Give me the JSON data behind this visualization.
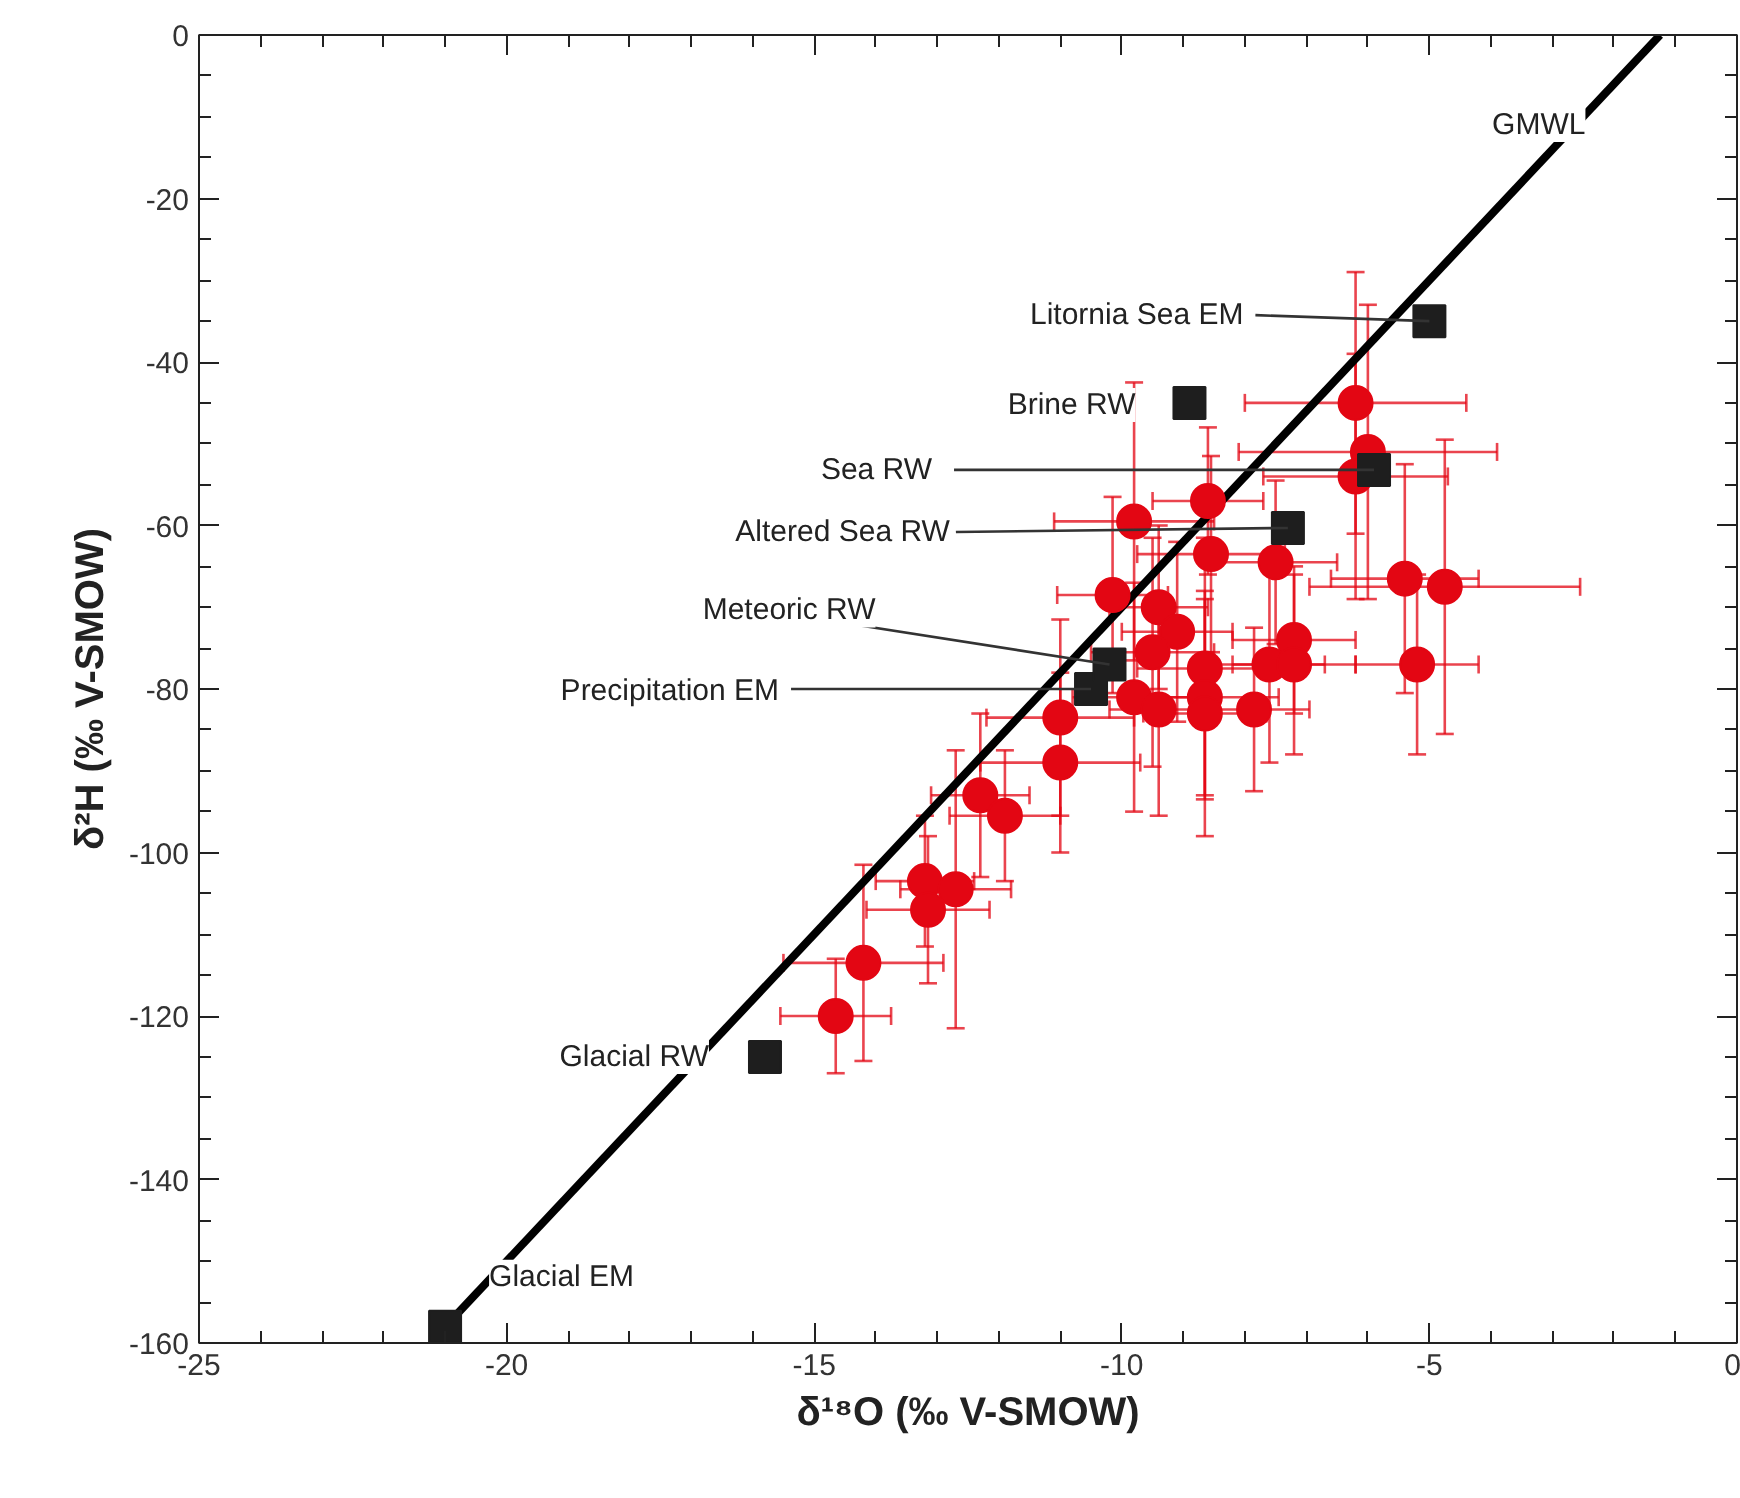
{
  "chart_data": {
    "type": "scatter",
    "xlabel": "δ¹⁸O (‰ V-SMOW)",
    "ylabel": "δ²H (‰ V-SMOW)",
    "xlim": [
      -25,
      0
    ],
    "ylim": [
      -160,
      0
    ],
    "xticks": [
      -25,
      -20,
      -15,
      -10,
      -5,
      0
    ],
    "yticks": [
      -160,
      -140,
      -120,
      -100,
      -80,
      -60,
      -40,
      -20,
      0
    ],
    "grid": false,
    "legend": false,
    "series": [
      {
        "marker": "circle",
        "color": "#e30613",
        "x": [
          -6.2,
          -6.0,
          -6.2,
          -8.6,
          -9.8,
          -8.55,
          -7.5,
          -5.4,
          -4.75,
          -10.15,
          -9.4,
          -9.1,
          -9.5,
          -8.65,
          -7.2,
          -7.6,
          -7.2,
          -5.2,
          -9.8,
          -8.65,
          -9.4,
          -8.65,
          -7.85,
          -11.0,
          -11.0,
          -12.3,
          -11.9,
          -13.2,
          -12.7,
          -13.15,
          -14.2,
          -14.65
        ],
        "values": [
          -45,
          -51,
          -54,
          -57,
          -59.5,
          -63.5,
          -64.5,
          -66.5,
          -67.5,
          -68.5,
          -70,
          -73,
          -75.5,
          -77.5,
          -74,
          -77,
          -77,
          -77,
          -81,
          -81,
          -82.5,
          -83,
          -82.5,
          -83.5,
          -89,
          -93,
          -95.5,
          -103.5,
          -104.5,
          -107,
          -113.5,
          -120
        ],
        "xerrors": [
          1.8,
          2.1,
          1.5,
          0.9,
          1.3,
          1.2,
          1.0,
          1.2,
          2.2,
          0.9,
          0.8,
          0.9,
          1.0,
          1.1,
          1.0,
          0.9,
          1.0,
          1.0,
          1.0,
          1.2,
          0.8,
          1.0,
          0.9,
          1.2,
          1.3,
          0.8,
          0.9,
          0.8,
          0.9,
          1.0,
          1.3,
          0.9
        ],
        "errors": [
          16,
          18,
          15,
          9,
          17,
          12,
          10,
          14,
          18,
          12,
          10,
          11,
          14,
          16,
          9,
          12,
          11,
          11,
          14,
          12,
          13,
          15,
          10,
          12,
          11,
          10,
          8,
          8,
          17,
          9,
          12,
          7
        ]
      },
      {
        "type": "scatter",
        "marker": "square",
        "color": "#1e1e1e",
        "x": [
          -21.0,
          -15.8,
          -10.5,
          -10.2,
          -7.3,
          -5.9,
          -8.9,
          -5.0
        ],
        "values": [
          -158,
          -125,
          -80,
          -77,
          -60.3,
          -53.2,
          -45,
          -35
        ]
      },
      {
        "type": "line",
        "name": "GMWL",
        "color": "#000000",
        "x": [
          -21.0,
          -1.25
        ],
        "values": [
          -158,
          0
        ]
      }
    ],
    "annotations": [
      {
        "text": "Glacial EM",
        "x": -21.0,
        "y": -158
      },
      {
        "text": "Glacial RW",
        "x": -15.8,
        "y": -125
      },
      {
        "text": "Precipitation EM",
        "x": -10.5,
        "y": -80
      },
      {
        "text": "Meteoric RW",
        "x": -10.2,
        "y": -77
      },
      {
        "text": "Altered Sea RW",
        "x": -7.3,
        "y": -60.3
      },
      {
        "text": "Sea RW",
        "x": -5.9,
        "y": -53.2
      },
      {
        "text": "Brine RW",
        "x": -8.9,
        "y": -45
      },
      {
        "text": "Litornia Sea EM",
        "x": -5.0,
        "y": -35
      }
    ]
  }
}
